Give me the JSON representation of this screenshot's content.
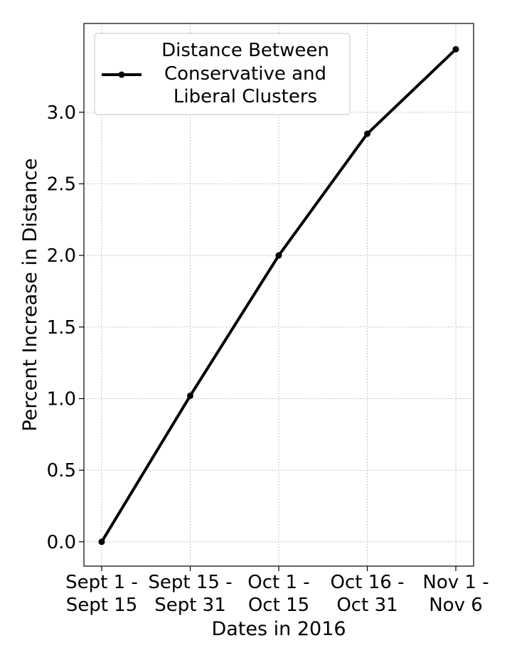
{
  "chart_data": {
    "type": "line",
    "title": "",
    "xlabel": "Dates in 2016",
    "ylabel": "Percent Increase in Distance",
    "categories": [
      [
        "Sept 1 -",
        "Sept 15"
      ],
      [
        "Sept 15 -",
        "Sept 31"
      ],
      [
        "Oct 1 -",
        "Oct 15"
      ],
      [
        "Oct 16 -",
        "Oct 31"
      ],
      [
        "Nov 1 -",
        "Nov 6"
      ]
    ],
    "series": [
      {
        "name": "Distance Between Conservative and Liberal Clusters",
        "legend_lines": [
          "Distance Between",
          "Conservative and",
          "Liberal Clusters"
        ],
        "values": [
          0.0,
          1.02,
          2.0,
          2.85,
          3.44
        ],
        "color": "#000000",
        "marker": "circle"
      }
    ],
    "ylim": [
      -0.17,
      3.62
    ],
    "yticks": [
      0.0,
      0.5,
      1.0,
      1.5,
      2.0,
      2.5,
      3.0
    ],
    "ytick_labels": [
      "0.0",
      "0.5",
      "1.0",
      "1.5",
      "2.0",
      "2.5",
      "3.0"
    ],
    "grid": true,
    "legend_position": "top-left"
  }
}
